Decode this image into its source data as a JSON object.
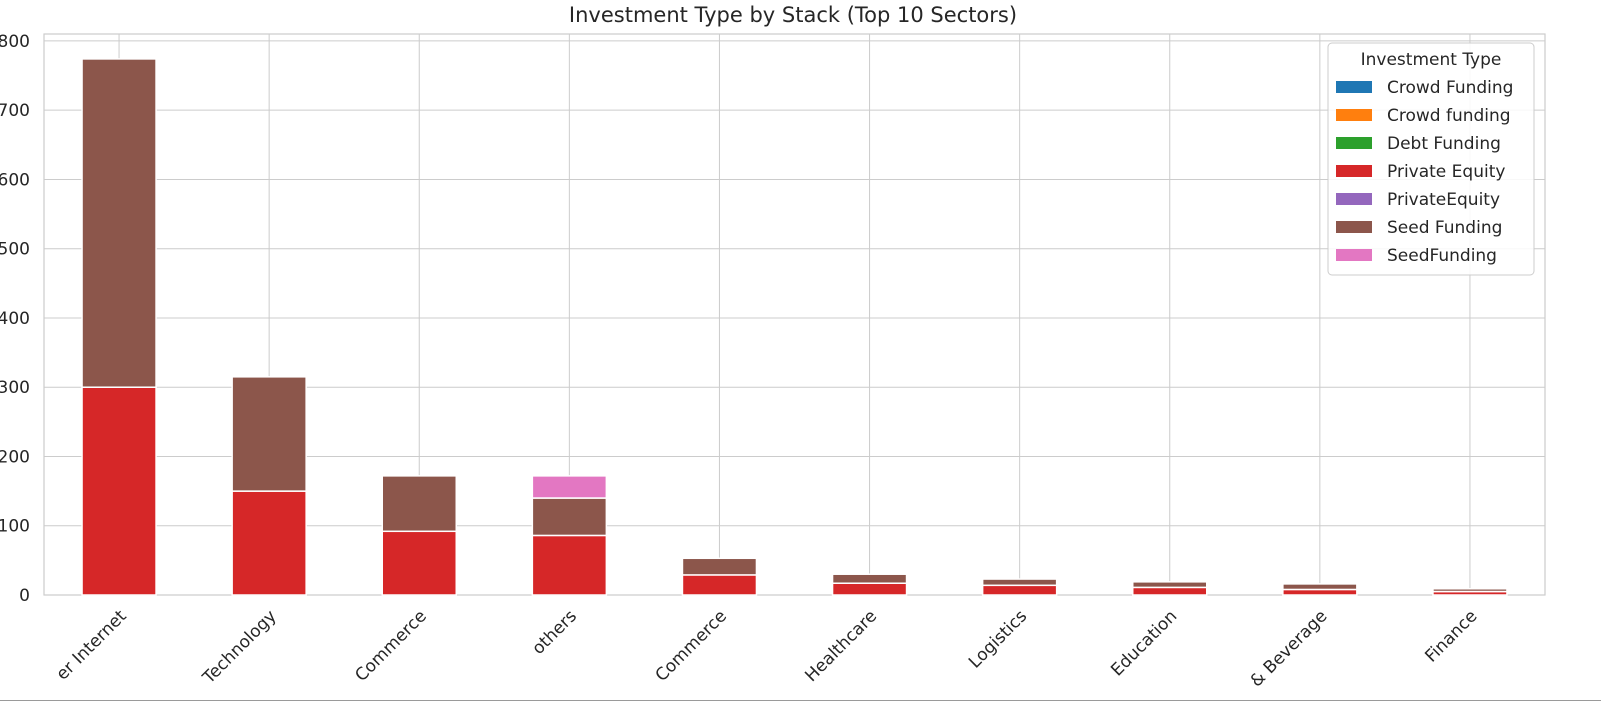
{
  "chart_data": {
    "type": "bar",
    "stacked": true,
    "title": "Investment Type by Stack (Top 10 Sectors)",
    "xlabel": "",
    "ylabel": "",
    "categories_visible_text": [
      "er Internet",
      "Technology",
      "Commerce",
      "others",
      "Commerce",
      "Healthcare",
      "Logistics",
      "Education",
      "& Beverage",
      "Finance"
    ],
    "ylim": [
      0,
      810
    ],
    "y_ticks_visible_text": [
      "0",
      "100",
      "200",
      "300",
      "400",
      "500",
      "600",
      "700",
      "800"
    ],
    "y_ticks_values": [
      0,
      100,
      200,
      300,
      400,
      500,
      600,
      700,
      800
    ],
    "grid": true,
    "legend": {
      "title": "Investment Type",
      "placement": "top-right"
    },
    "series": [
      {
        "name": "Crowd Funding",
        "color": "#1f77b4",
        "values": [
          0,
          0,
          0,
          0,
          0,
          0,
          0,
          0,
          0,
          0
        ]
      },
      {
        "name": "Crowd funding",
        "color": "#ff7f0e",
        "values": [
          0,
          0,
          0,
          0,
          0,
          0,
          0,
          0,
          0,
          0
        ]
      },
      {
        "name": "Debt Funding",
        "color": "#2ca02c",
        "values": [
          0,
          0,
          0,
          0,
          0,
          0,
          0,
          0,
          0,
          0
        ]
      },
      {
        "name": "Private Equity",
        "color": "#d62728",
        "values": [
          300,
          150,
          92,
          86,
          29,
          17,
          14,
          11,
          8,
          5
        ]
      },
      {
        "name": "PrivateEquity",
        "color": "#9467bd",
        "values": [
          0,
          0,
          0,
          0,
          0,
          0,
          0,
          0,
          0,
          0
        ]
      },
      {
        "name": "Seed Funding",
        "color": "#8c564b",
        "values": [
          474,
          165,
          80,
          54,
          24,
          13,
          9,
          8,
          8,
          4
        ]
      },
      {
        "name": "SeedFunding",
        "color": "#e377c2",
        "values": [
          0,
          0,
          0,
          32,
          0,
          0,
          0,
          0,
          0,
          0
        ]
      }
    ]
  }
}
